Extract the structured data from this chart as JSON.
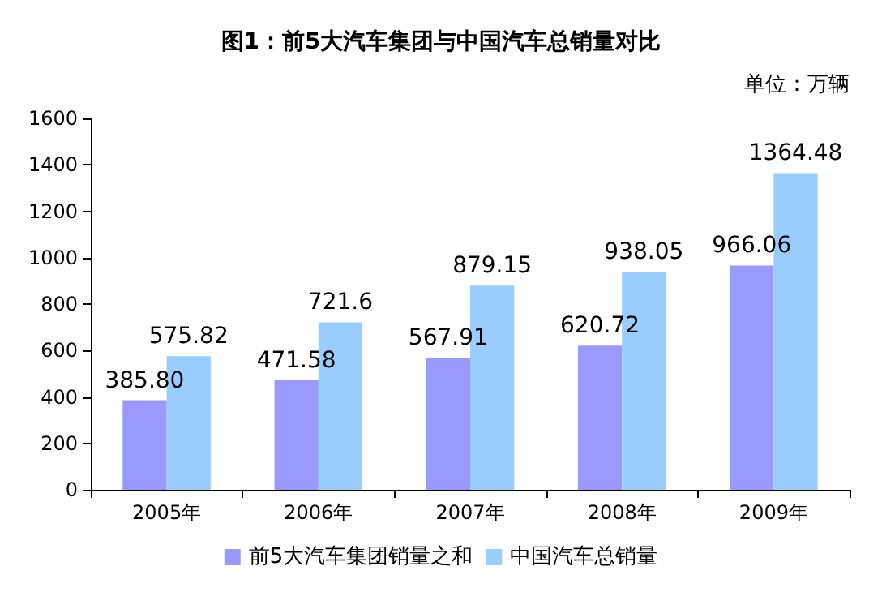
{
  "chart_data": {
    "type": "bar",
    "title": "图1：前5大汽车集团与中国汽车总销量对比",
    "annotations": [
      "单位：万辆"
    ],
    "categories": [
      "2005年",
      "2006年",
      "2007年",
      "2008年",
      "2009年"
    ],
    "series": [
      {
        "name": "前5大汽车集团销量之和",
        "color": "#9999ff",
        "values": [
          385.8,
          471.58,
          567.91,
          620.72,
          966.06
        ],
        "value_labels": [
          "385.80",
          "471.58",
          "567.91",
          "620.72",
          "966.06"
        ]
      },
      {
        "name": "中国汽车总销量",
        "color": "#99ccff",
        "values": [
          575.82,
          721.6,
          879.15,
          938.05,
          1364.48
        ],
        "value_labels": [
          "575.82",
          "721.6",
          "879.15",
          "938.05",
          "1364.48"
        ]
      }
    ],
    "ylim": [
      0,
      1600
    ],
    "yticks": [
      0,
      200,
      400,
      600,
      800,
      1000,
      1200,
      1400,
      1600
    ],
    "grid": false,
    "legend": "bottom"
  }
}
